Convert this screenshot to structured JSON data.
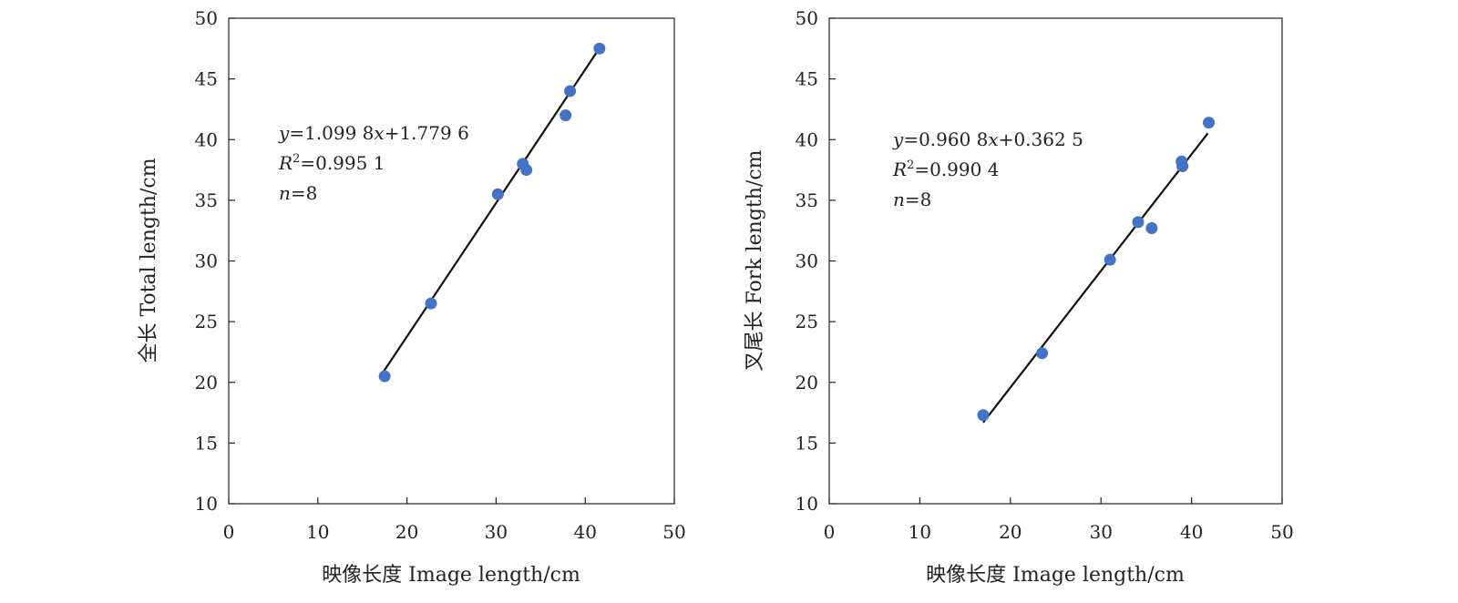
{
  "chart_data": [
    {
      "type": "scatter",
      "title": "",
      "xlabel": "映像长度 Image length/cm",
      "ylabel": "全长 Total length/cm",
      "xlim": [
        0,
        50
      ],
      "ylim": [
        10,
        50
      ],
      "xticks": [
        0,
        10,
        20,
        30,
        40,
        50
      ],
      "yticks": [
        10,
        15,
        20,
        25,
        30,
        35,
        40,
        45,
        50
      ],
      "grid": false,
      "marker_color": "#4472C4",
      "line_color": "#111111",
      "points": [
        {
          "x": 17.5,
          "y": 20.5
        },
        {
          "x": 22.7,
          "y": 26.5
        },
        {
          "x": 30.2,
          "y": 35.5
        },
        {
          "x": 33.0,
          "y": 38.0
        },
        {
          "x": 33.4,
          "y": 37.5
        },
        {
          "x": 37.8,
          "y": 42.0
        },
        {
          "x": 38.3,
          "y": 44.0
        },
        {
          "x": 41.6,
          "y": 47.5
        }
      ],
      "fit": {
        "slope": 1.0998,
        "intercept": 1.7796,
        "x_range": [
          17.3,
          41.5
        ]
      },
      "annotation": {
        "equation_prefix": "y",
        "equation_mid": "=1.099 8",
        "equation_var": "x",
        "equation_suffix": "+1.779 6",
        "r2_var": "R",
        "r2_sup": "2",
        "r2_value": "=0.995 1",
        "n_var": "n",
        "n_value": "=8"
      }
    },
    {
      "type": "scatter",
      "title": "",
      "xlabel": "映像长度 Image length/cm",
      "ylabel": "叉尾长 Fork length/cm",
      "xlim": [
        0,
        50
      ],
      "ylim": [
        10,
        50
      ],
      "xticks": [
        0,
        10,
        20,
        30,
        40,
        50
      ],
      "yticks": [
        10,
        15,
        20,
        25,
        30,
        35,
        40,
        45,
        50
      ],
      "grid": false,
      "marker_color": "#4472C4",
      "line_color": "#111111",
      "points": [
        {
          "x": 17.0,
          "y": 17.3
        },
        {
          "x": 23.5,
          "y": 22.4
        },
        {
          "x": 31.0,
          "y": 30.1
        },
        {
          "x": 34.1,
          "y": 33.2
        },
        {
          "x": 35.6,
          "y": 32.7
        },
        {
          "x": 38.9,
          "y": 38.2
        },
        {
          "x": 39.0,
          "y": 37.8
        },
        {
          "x": 41.9,
          "y": 41.4
        }
      ],
      "fit": {
        "slope": 0.9608,
        "intercept": 0.3625,
        "x_range": [
          17.0,
          41.8
        ]
      },
      "annotation": {
        "equation_prefix": "y",
        "equation_mid": "=0.960 8",
        "equation_var": "x",
        "equation_suffix": "+0.362 5",
        "r2_var": "R",
        "r2_sup": "2",
        "r2_value": "=0.990 4",
        "n_var": "n",
        "n_value": "=8"
      }
    }
  ]
}
